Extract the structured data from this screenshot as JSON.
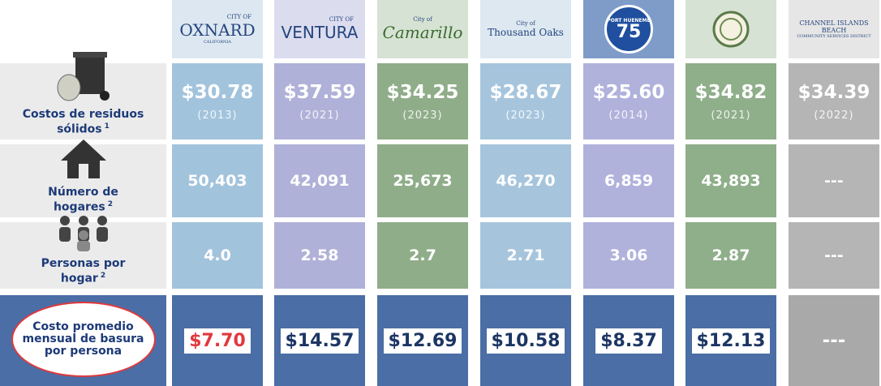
{
  "header": {
    "logos": [
      {
        "small": "CITY OF",
        "name": "OXNARD",
        "sub": "CALIFORNIA"
      },
      {
        "small": "CITY OF",
        "name": "VENTURA"
      },
      {
        "small": "City of",
        "name": "Camarillo"
      },
      {
        "small": "City of",
        "name": "Thousand Oaks"
      },
      {
        "small": "PORT HUENEME",
        "name": "75"
      },
      {},
      {
        "name": "CHANNEL ISLANDS BEACH",
        "sub": "COMMUNITY SERVICES DISTRICT"
      }
    ]
  },
  "table": {
    "rows": [
      {
        "label": "Costos de residuos sólidos",
        "note": "1",
        "cells": [
          {
            "value": "$30.78",
            "year": "(2013)"
          },
          {
            "value": "$37.59",
            "year": "(2021)"
          },
          {
            "value": "$34.25",
            "year": "(2023)"
          },
          {
            "value": "$28.67",
            "year": "(2023)"
          },
          {
            "value": "$25.60",
            "year": "(2014)"
          },
          {
            "value": "$34.82",
            "year": "(2021)"
          },
          {
            "value": "$34.39",
            "year": "(2022)"
          }
        ]
      },
      {
        "label": "Número de hogares",
        "note": "2",
        "cells": [
          {
            "value": "50,403"
          },
          {
            "value": "42,091"
          },
          {
            "value": "25,673"
          },
          {
            "value": "46,270"
          },
          {
            "value": "6,859"
          },
          {
            "value": "43,893"
          },
          {
            "value": "---"
          }
        ]
      },
      {
        "label": "Personas por hogar",
        "note": "2",
        "cells": [
          {
            "value": "4.0"
          },
          {
            "value": "2.58"
          },
          {
            "value": "2.7"
          },
          {
            "value": "2.71"
          },
          {
            "value": "3.06"
          },
          {
            "value": "2.87"
          },
          {
            "value": "---"
          }
        ]
      },
      {
        "label": "Costo promedio mensual de basura por persona",
        "cells": [
          {
            "value": "$7.70"
          },
          {
            "value": "$14.57"
          },
          {
            "value": "$12.69"
          },
          {
            "value": "$10.58"
          },
          {
            "value": "$8.37"
          },
          {
            "value": "$12.13"
          },
          {
            "value": "---"
          }
        ]
      }
    ]
  }
}
